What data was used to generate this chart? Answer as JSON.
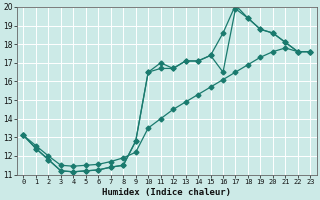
{
  "xlabel": "Humidex (Indice chaleur)",
  "xlim": [
    -0.5,
    23.5
  ],
  "ylim": [
    11,
    20
  ],
  "xticks": [
    0,
    1,
    2,
    3,
    4,
    5,
    6,
    7,
    8,
    9,
    10,
    11,
    12,
    13,
    14,
    15,
    16,
    17,
    18,
    19,
    20,
    21,
    22,
    23
  ],
  "yticks": [
    11,
    12,
    13,
    14,
    15,
    16,
    17,
    18,
    19,
    20
  ],
  "bg_color": "#cceae7",
  "grid_color": "#ffffff",
  "line_color": "#1a7a6e",
  "line1_x": [
    0,
    1,
    2,
    3,
    4,
    5,
    6,
    7,
    8,
    9,
    10,
    11,
    12,
    13,
    14,
    15,
    16,
    17,
    18,
    19,
    20,
    21,
    22,
    23
  ],
  "line1_y": [
    13.1,
    12.4,
    11.8,
    11.2,
    11.15,
    11.2,
    11.25,
    11.4,
    11.5,
    12.8,
    16.5,
    17.0,
    16.7,
    17.1,
    17.1,
    17.4,
    18.6,
    20.1,
    19.4,
    18.8,
    18.6,
    18.1,
    17.6,
    17.6
  ],
  "line2_x": [
    0,
    1,
    2,
    3,
    4,
    5,
    6,
    7,
    8,
    9,
    10,
    11,
    12,
    13,
    14,
    15,
    16,
    17,
    18,
    19,
    20,
    21,
    22,
    23
  ],
  "line2_y": [
    13.1,
    12.4,
    11.8,
    11.2,
    11.15,
    11.2,
    11.25,
    11.4,
    11.5,
    12.8,
    16.5,
    16.7,
    16.7,
    17.1,
    17.1,
    17.4,
    16.5,
    19.9,
    19.4,
    18.8,
    18.6,
    18.1,
    17.6,
    17.6
  ],
  "line3_x": [
    0,
    1,
    2,
    3,
    4,
    5,
    6,
    7,
    8,
    9,
    10,
    11,
    12,
    13,
    14,
    15,
    16,
    17,
    18,
    19,
    20,
    21,
    22,
    23
  ],
  "line3_y": [
    13.1,
    12.55,
    12.0,
    11.5,
    11.45,
    11.5,
    11.55,
    11.7,
    11.9,
    12.2,
    13.5,
    14.0,
    14.5,
    14.9,
    15.3,
    15.7,
    16.1,
    16.5,
    16.9,
    17.3,
    17.6,
    17.8,
    17.6,
    17.6
  ]
}
